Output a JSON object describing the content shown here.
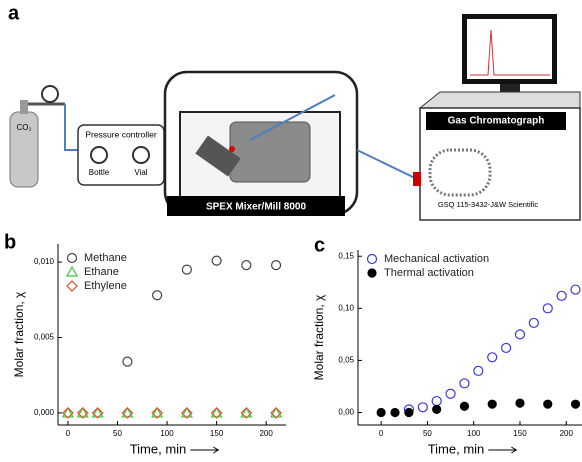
{
  "diagram": {
    "panel_label": "a",
    "gas": "CO₂",
    "controller": "Pressure controller",
    "gauge_1": "Bottle",
    "gauge_2": "Vial",
    "mill": "SPEX Mixer/Mill 8000",
    "gc": "Gas Chromatograph",
    "column": "GSQ 115-3432-J&W Scientific"
  },
  "chart_data": [
    {
      "type": "scatter",
      "panel_label": "b",
      "x_label": "Time, min",
      "y_label": "Molar fraction, χ",
      "xlim": [
        -10,
        220
      ],
      "xticks": [
        0,
        50,
        100,
        150,
        200
      ],
      "ylim": [
        -0.0008,
        0.0112
      ],
      "yticks": [
        {
          "value": 0,
          "label": "0,000"
        },
        {
          "value": 0.005,
          "label": "0,005"
        },
        {
          "value": 0.01,
          "label": "0,010"
        }
      ],
      "series": [
        {
          "name": "Methane",
          "color": "#444444",
          "marker": "circle-open",
          "x": [
            60,
            90,
            120,
            150,
            180,
            210
          ],
          "values": [
            0.0034,
            0.0078,
            0.0095,
            0.0101,
            0.0098,
            0.0098
          ]
        },
        {
          "name": "Ethane",
          "color": "#33cc33",
          "marker": "triangle-open",
          "x": [
            0,
            15,
            30,
            60,
            90,
            120,
            150,
            180,
            210
          ],
          "values": [
            0,
            0,
            0,
            0,
            0,
            0,
            0,
            0,
            0
          ]
        },
        {
          "name": "Ethylene",
          "color": "#e05030",
          "marker": "diamond-open",
          "x": [
            0,
            15,
            30,
            60,
            90,
            120,
            150,
            180,
            210
          ],
          "values": [
            0,
            0,
            0,
            0,
            0,
            0,
            0,
            0,
            0
          ]
        }
      ]
    },
    {
      "type": "scatter",
      "panel_label": "c",
      "x_label": "Time, min",
      "y_label": "Molar fraction, χ",
      "xlim": [
        -25,
        217
      ],
      "xticks": [
        0,
        50,
        100,
        150,
        200
      ],
      "ylim": [
        -0.012,
        0.156
      ],
      "yticks": [
        {
          "value": 0,
          "label": "0,00"
        },
        {
          "value": 0.05,
          "label": "0,05"
        },
        {
          "value": 0.1,
          "label": "0,10"
        },
        {
          "value": 0.15,
          "label": "0,15"
        }
      ],
      "series": [
        {
          "name": "Mechanical activation",
          "color": "#3a3adf",
          "marker": "circle-open",
          "x": [
            30,
            45,
            60,
            75,
            90,
            105,
            120,
            135,
            150,
            165,
            180,
            195,
            210
          ],
          "values": [
            0.003,
            0.005,
            0.011,
            0.018,
            0.028,
            0.04,
            0.053,
            0.062,
            0.075,
            0.086,
            0.1,
            0.112,
            0.118
          ]
        },
        {
          "name": "Thermal activation",
          "color": "#000000",
          "marker": "circle-filled",
          "x": [
            0,
            15,
            30,
            60,
            90,
            120,
            150,
            180,
            210
          ],
          "values": [
            0,
            0,
            0,
            0.003,
            0.006,
            0.008,
            0.009,
            0.008,
            0.008
          ]
        }
      ]
    }
  ]
}
